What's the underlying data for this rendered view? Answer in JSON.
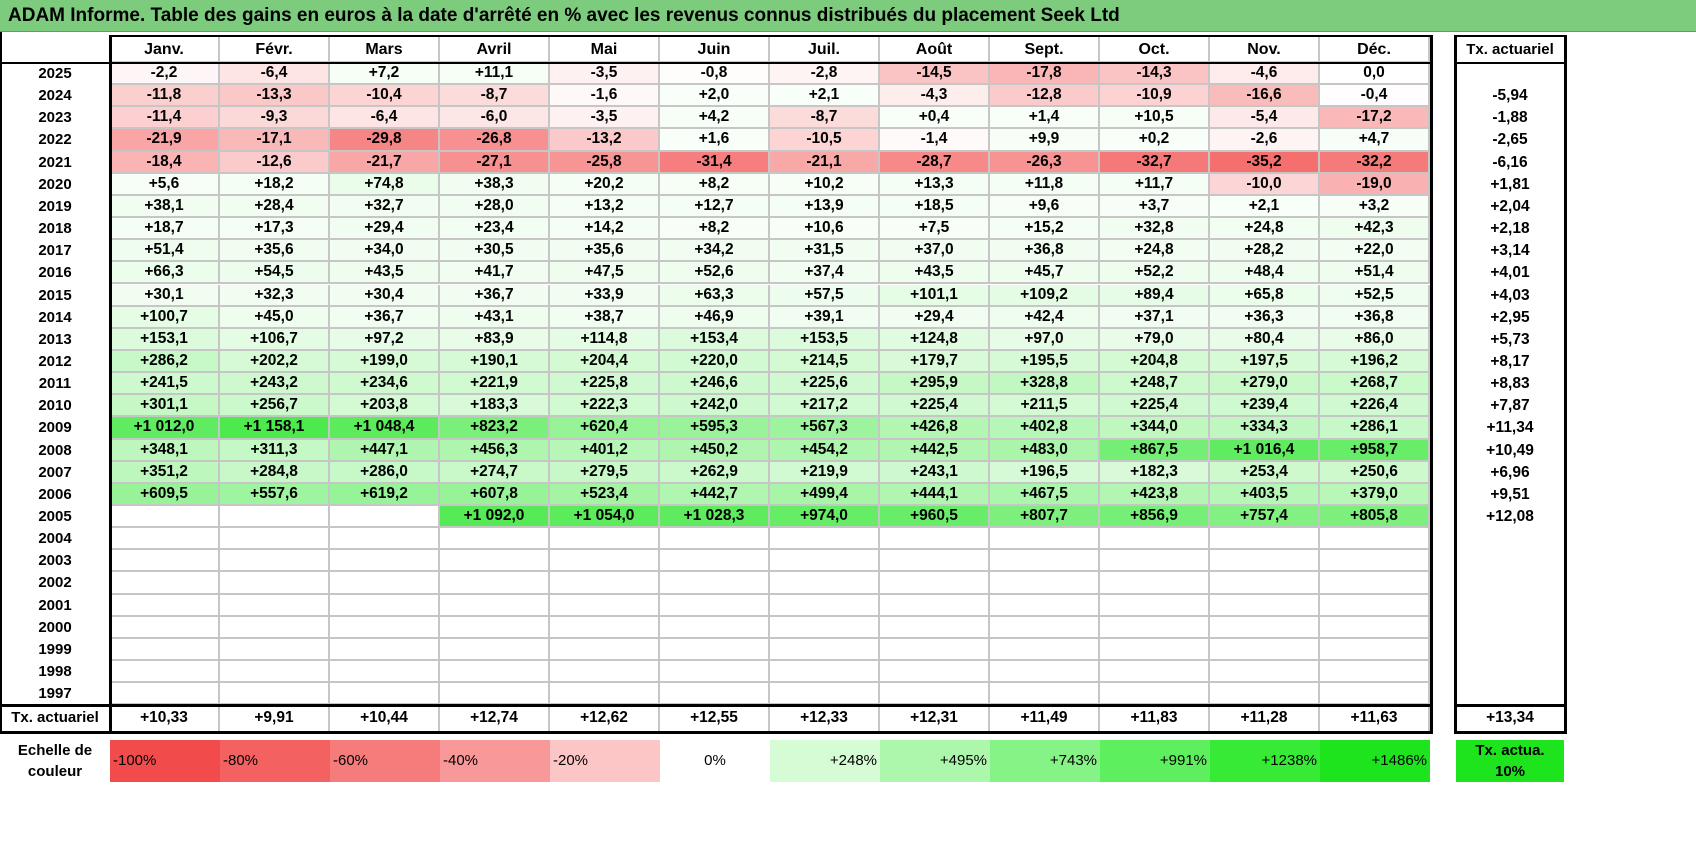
{
  "title": "ADAM Informe. Table des gains en euros à la date d'arrêté en % avec les revenus connus distribués du placement Seek Ltd",
  "months": [
    "Janv.",
    "Févr.",
    "Mars",
    "Avril",
    "Mai",
    "Juin",
    "Juil.",
    "Août",
    "Sept.",
    "Oct.",
    "Nov.",
    "Déc."
  ],
  "rate_header": "Tx. actuariel",
  "rows": [
    {
      "year": "2025",
      "values": [
        "-2,2",
        "-6,4",
        "+7,2",
        "+11,1",
        "-3,5",
        "-0,8",
        "-2,8",
        "-14,5",
        "-17,8",
        "-14,3",
        "-4,6",
        "0,0"
      ],
      "rate": ""
    },
    {
      "year": "2024",
      "values": [
        "-11,8",
        "-13,3",
        "-10,4",
        "-8,7",
        "-1,6",
        "+2,0",
        "+2,1",
        "-4,3",
        "-12,8",
        "-10,9",
        "-16,6",
        "-0,4"
      ],
      "rate": "-5,94"
    },
    {
      "year": "2023",
      "values": [
        "-11,4",
        "-9,3",
        "-6,4",
        "-6,0",
        "-3,5",
        "+4,2",
        "-8,7",
        "+0,4",
        "+1,4",
        "+10,5",
        "-5,4",
        "-17,2"
      ],
      "rate": "-1,88"
    },
    {
      "year": "2022",
      "values": [
        "-21,9",
        "-17,1",
        "-29,8",
        "-26,8",
        "-13,2",
        "+1,6",
        "-10,5",
        "-1,4",
        "+9,9",
        "+0,2",
        "-2,6",
        "+4,7"
      ],
      "rate": "-2,65"
    },
    {
      "year": "2021",
      "values": [
        "-18,4",
        "-12,6",
        "-21,7",
        "-27,1",
        "-25,8",
        "-31,4",
        "-21,1",
        "-28,7",
        "-26,3",
        "-32,7",
        "-35,2",
        "-32,2"
      ],
      "rate": "-6,16"
    },
    {
      "year": "2020",
      "values": [
        "+5,6",
        "+18,2",
        "+74,8",
        "+38,3",
        "+20,2",
        "+8,2",
        "+10,2",
        "+13,3",
        "+11,8",
        "+11,7",
        "-10,0",
        "-19,0"
      ],
      "rate": "+1,81"
    },
    {
      "year": "2019",
      "values": [
        "+38,1",
        "+28,4",
        "+32,7",
        "+28,0",
        "+13,2",
        "+12,7",
        "+13,9",
        "+18,5",
        "+9,6",
        "+3,7",
        "+2,1",
        "+3,2"
      ],
      "rate": "+2,04"
    },
    {
      "year": "2018",
      "values": [
        "+18,7",
        "+17,3",
        "+29,4",
        "+23,4",
        "+14,2",
        "+8,2",
        "+10,6",
        "+7,5",
        "+15,2",
        "+32,8",
        "+24,8",
        "+42,3"
      ],
      "rate": "+2,18"
    },
    {
      "year": "2017",
      "values": [
        "+51,4",
        "+35,6",
        "+34,0",
        "+30,5",
        "+35,6",
        "+34,2",
        "+31,5",
        "+37,0",
        "+36,8",
        "+24,8",
        "+28,2",
        "+22,0"
      ],
      "rate": "+3,14"
    },
    {
      "year": "2016",
      "values": [
        "+66,3",
        "+54,5",
        "+43,5",
        "+41,7",
        "+47,5",
        "+52,6",
        "+37,4",
        "+43,5",
        "+45,7",
        "+52,2",
        "+48,4",
        "+51,4"
      ],
      "rate": "+4,01"
    },
    {
      "year": "2015",
      "values": [
        "+30,1",
        "+32,3",
        "+30,4",
        "+36,7",
        "+33,9",
        "+63,3",
        "+57,5",
        "+101,1",
        "+109,2",
        "+89,4",
        "+65,8",
        "+52,5"
      ],
      "rate": "+4,03"
    },
    {
      "year": "2014",
      "values": [
        "+100,7",
        "+45,0",
        "+36,7",
        "+43,1",
        "+38,7",
        "+46,9",
        "+39,1",
        "+29,4",
        "+42,4",
        "+37,1",
        "+36,3",
        "+36,8"
      ],
      "rate": "+2,95"
    },
    {
      "year": "2013",
      "values": [
        "+153,1",
        "+106,7",
        "+97,2",
        "+83,9",
        "+114,8",
        "+153,4",
        "+153,5",
        "+124,8",
        "+97,0",
        "+79,0",
        "+80,4",
        "+86,0"
      ],
      "rate": "+5,73"
    },
    {
      "year": "2012",
      "values": [
        "+286,2",
        "+202,2",
        "+199,0",
        "+190,1",
        "+204,4",
        "+220,0",
        "+214,5",
        "+179,7",
        "+195,5",
        "+204,8",
        "+197,5",
        "+196,2"
      ],
      "rate": "+8,17"
    },
    {
      "year": "2011",
      "values": [
        "+241,5",
        "+243,2",
        "+234,6",
        "+221,9",
        "+225,8",
        "+246,6",
        "+225,6",
        "+295,9",
        "+328,8",
        "+248,7",
        "+279,0",
        "+268,7"
      ],
      "rate": "+8,83"
    },
    {
      "year": "2010",
      "values": [
        "+301,1",
        "+256,7",
        "+203,8",
        "+183,3",
        "+222,3",
        "+242,0",
        "+217,2",
        "+225,4",
        "+211,5",
        "+225,4",
        "+239,4",
        "+226,4"
      ],
      "rate": "+7,87"
    },
    {
      "year": "2009",
      "values": [
        "+1 012,0",
        "+1 158,1",
        "+1 048,4",
        "+823,2",
        "+620,4",
        "+595,3",
        "+567,3",
        "+426,8",
        "+402,8",
        "+344,0",
        "+334,3",
        "+286,1"
      ],
      "rate": "+11,34"
    },
    {
      "year": "2008",
      "values": [
        "+348,1",
        "+311,3",
        "+447,1",
        "+456,3",
        "+401,2",
        "+450,2",
        "+454,2",
        "+442,5",
        "+483,0",
        "+867,5",
        "+1 016,4",
        "+958,7"
      ],
      "rate": "+10,49"
    },
    {
      "year": "2007",
      "values": [
        "+351,2",
        "+284,8",
        "+286,0",
        "+274,7",
        "+279,5",
        "+262,9",
        "+219,9",
        "+243,1",
        "+196,5",
        "+182,3",
        "+253,4",
        "+250,6"
      ],
      "rate": "+6,96"
    },
    {
      "year": "2006",
      "values": [
        "+609,5",
        "+557,6",
        "+619,2",
        "+607,8",
        "+523,4",
        "+442,7",
        "+499,4",
        "+444,1",
        "+467,5",
        "+423,8",
        "+403,5",
        "+379,0"
      ],
      "rate": "+9,51"
    },
    {
      "year": "2005",
      "values": [
        "",
        "",
        "",
        "+1 092,0",
        "+1 054,0",
        "+1 028,3",
        "+974,0",
        "+960,5",
        "+807,7",
        "+856,9",
        "+757,4",
        "+805,8"
      ],
      "rate": "+12,08"
    },
    {
      "year": "2004",
      "values": [
        "",
        "",
        "",
        "",
        "",
        "",
        "",
        "",
        "",
        "",
        "",
        ""
      ],
      "rate": ""
    },
    {
      "year": "2003",
      "values": [
        "",
        "",
        "",
        "",
        "",
        "",
        "",
        "",
        "",
        "",
        "",
        ""
      ],
      "rate": ""
    },
    {
      "year": "2002",
      "values": [
        "",
        "",
        "",
        "",
        "",
        "",
        "",
        "",
        "",
        "",
        "",
        ""
      ],
      "rate": ""
    },
    {
      "year": "2001",
      "values": [
        "",
        "",
        "",
        "",
        "",
        "",
        "",
        "",
        "",
        "",
        "",
        ""
      ],
      "rate": ""
    },
    {
      "year": "2000",
      "values": [
        "",
        "",
        "",
        "",
        "",
        "",
        "",
        "",
        "",
        "",
        "",
        ""
      ],
      "rate": ""
    },
    {
      "year": "1999",
      "values": [
        "",
        "",
        "",
        "",
        "",
        "",
        "",
        "",
        "",
        "",
        "",
        ""
      ],
      "rate": ""
    },
    {
      "year": "1998",
      "values": [
        "",
        "",
        "",
        "",
        "",
        "",
        "",
        "",
        "",
        "",
        "",
        ""
      ],
      "rate": ""
    },
    {
      "year": "1997",
      "values": [
        "",
        "",
        "",
        "",
        "",
        "",
        "",
        "",
        "",
        "",
        "",
        ""
      ],
      "rate": ""
    }
  ],
  "footer": {
    "label": "Tx. actuariel",
    "values": [
      "+10,33",
      "+9,91",
      "+10,44",
      "+12,74",
      "+12,62",
      "+12,55",
      "+12,33",
      "+12,31",
      "+11,49",
      "+11,83",
      "+11,28",
      "+11,63"
    ],
    "total": "+13,34"
  },
  "scale": {
    "label": "Echelle de couleur",
    "steps": [
      {
        "text": "-100%",
        "color": "#f24b4b"
      },
      {
        "text": "-80%",
        "color": "#f46161"
      },
      {
        "text": "-60%",
        "color": "#f67b7b"
      },
      {
        "text": "-40%",
        "color": "#f99898"
      },
      {
        "text": "-20%",
        "color": "#fcc6c6"
      },
      {
        "text": "0%",
        "color": "#ffffff"
      },
      {
        "text": "+248%",
        "color": "#d6fcd6"
      },
      {
        "text": "+495%",
        "color": "#adf7ad"
      },
      {
        "text": "+743%",
        "color": "#86f386"
      },
      {
        "text": "+991%",
        "color": "#5eef5e"
      },
      {
        "text": "+1238%",
        "color": "#36ea36"
      },
      {
        "text": "+1486%",
        "color": "#1de41d"
      }
    ],
    "rate_box": {
      "text": "Tx. actua. 10%",
      "color": "#1de41d"
    }
  },
  "colors": {
    "title_bg": "#7dcb7d",
    "neg_base": "#f24b4b",
    "pos_base": "#1de41d",
    "grid": "#c6c6c6"
  }
}
